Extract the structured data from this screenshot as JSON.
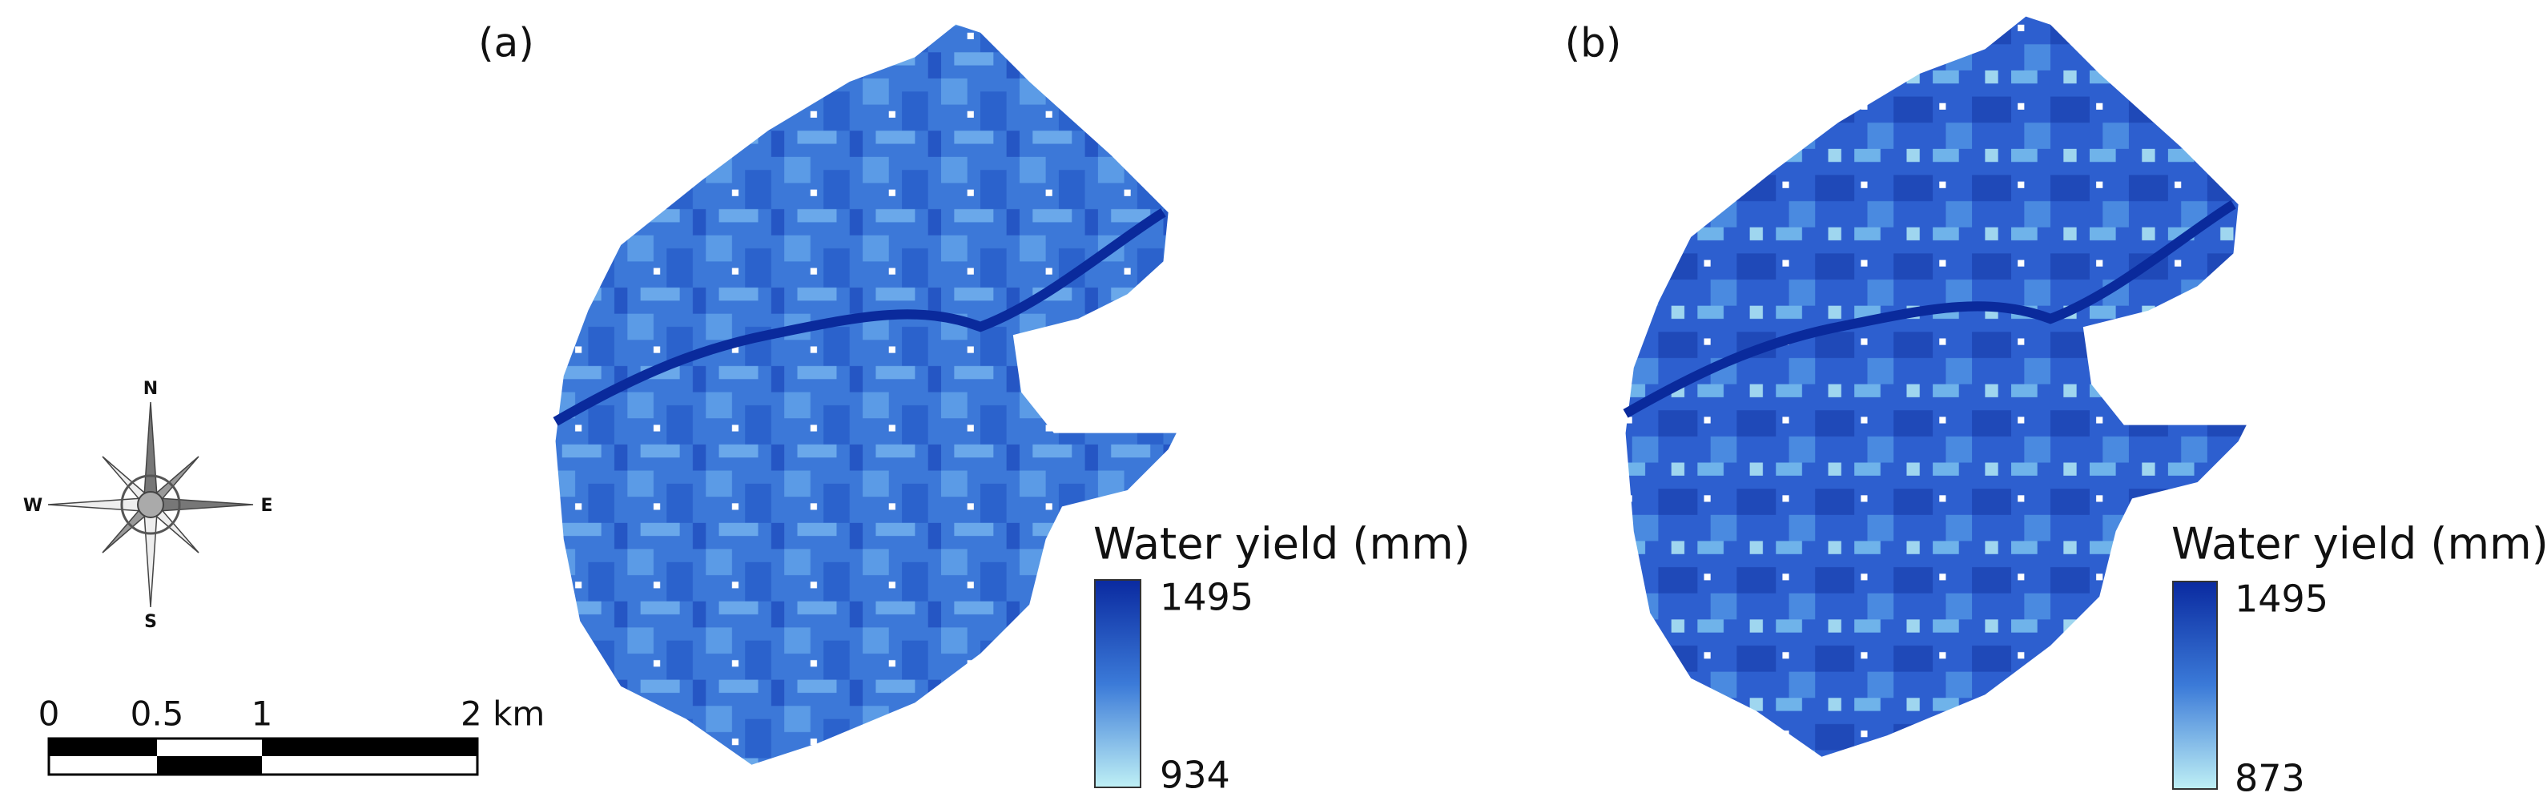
{
  "panels": [
    {
      "label": "(a)",
      "legend": {
        "title": "Water yield (mm)",
        "max": "1495",
        "min": "934"
      }
    },
    {
      "label": "(b)",
      "legend": {
        "title": "Water yield (mm)",
        "max": "1495",
        "min": "873"
      }
    }
  ],
  "compass": {
    "north": "N",
    "east": "E",
    "south": "S",
    "west": "W"
  },
  "scale_bar": {
    "labels": [
      "0",
      "0.5",
      "1",
      "2 km"
    ]
  }
}
